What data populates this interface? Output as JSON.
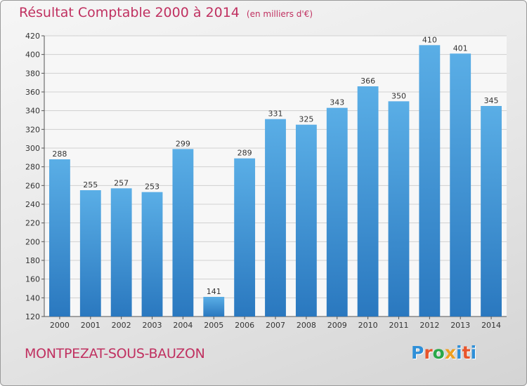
{
  "header": {
    "title": "Résultat Comptable 2000 à 2014",
    "unit": "(en milliers d'€)"
  },
  "footer": {
    "municipality": "MONTPEZAT-SOUS-BAUZON",
    "logo": "Proxiti"
  },
  "colors": {
    "title": "#c03060",
    "bar_light": "#5aaee6",
    "bar_dark": "#2a78bf",
    "grid": "#d0d0d0"
  },
  "chart_data": {
    "type": "bar",
    "title": "Résultat Comptable 2000 à 2014",
    "xlabel": "",
    "ylabel": "",
    "categories": [
      "2000",
      "2001",
      "2002",
      "2003",
      "2004",
      "2005",
      "2006",
      "2007",
      "2008",
      "2009",
      "2010",
      "2011",
      "2012",
      "2013",
      "2014"
    ],
    "values": [
      288,
      255,
      257,
      253,
      299,
      141,
      289,
      331,
      325,
      343,
      366,
      350,
      410,
      401,
      345
    ],
    "ylim": [
      120,
      420
    ],
    "yticks": [
      120,
      140,
      160,
      180,
      200,
      220,
      240,
      260,
      280,
      300,
      320,
      340,
      360,
      380,
      400,
      420
    ],
    "grid": true,
    "legend": "none"
  }
}
